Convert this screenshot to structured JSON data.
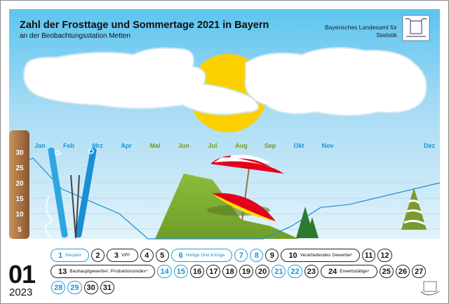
{
  "header": {
    "title": "Zahl der Frosttage und Sommertage 2021 in Bayern",
    "subtitle": "an der Beobachtungsstation Metten",
    "agency_line1": "Bayerisches Landesamt für",
    "agency_line2": "Statistik"
  },
  "chart_data": {
    "type": "area",
    "title": "Zahl der Frosttage und Sommertage 2021 in Bayern",
    "subtitle": "an der Beobachtungsstation Metten",
    "categories": [
      "Jan",
      "Feb",
      "Mrz",
      "Apr",
      "Mai",
      "Jun",
      "Jul",
      "Aug",
      "Sep",
      "Okt",
      "Nov",
      "Dez"
    ],
    "category_colors": {
      "frost": "#1a95d2",
      "summer": "#7a9a1e"
    },
    "summer_months": [
      "Mai",
      "Jun",
      "Jul",
      "Aug",
      "Sep"
    ],
    "y_ticks": [
      5,
      10,
      15,
      20,
      25,
      30
    ],
    "ylim": [
      0,
      32
    ],
    "grid": true,
    "series": [
      {
        "values": [
          28,
          18,
          14,
          10,
          0,
          0,
          0,
          0,
          0,
          6,
          12,
          13
        ],
        "color": "#1a8fd6"
      },
      {
        "values": [
          0,
          0,
          0,
          0,
          0,
          23,
          21,
          8,
          6,
          0,
          0,
          0
        ],
        "color": "#8dbb3a"
      }
    ]
  },
  "calendar": {
    "month": "01",
    "year": "2023",
    "rows": [
      [
        {
          "n": "1",
          "label": "Neujahr",
          "blue": true
        },
        {
          "n": "2"
        },
        {
          "n": "3",
          "label": "VPI¹"
        },
        {
          "n": "4"
        },
        {
          "n": "5"
        },
        {
          "n": "6",
          "label": "Heilige Drei Könige",
          "blue": true
        },
        {
          "n": "7",
          "blue": true
        },
        {
          "n": "8",
          "blue": true
        },
        {
          "n": "9"
        },
        {
          "n": "10",
          "label": "Verarbeitendes Gewerbe²"
        },
        {
          "n": "11"
        },
        {
          "n": "12"
        }
      ],
      [
        {
          "n": "13",
          "label": "Bauhauptgewerbe³, Produktionsindex⁴"
        },
        {
          "n": "14",
          "blue": true
        },
        {
          "n": "15",
          "blue": true
        },
        {
          "n": "16"
        },
        {
          "n": "17"
        },
        {
          "n": "18"
        },
        {
          "n": "19"
        },
        {
          "n": "20"
        },
        {
          "n": "21",
          "blue": true
        },
        {
          "n": "22",
          "blue": true
        },
        {
          "n": "23"
        },
        {
          "n": "24",
          "label": "Erwerbstätige⁵"
        },
        {
          "n": "25"
        },
        {
          "n": "26"
        },
        {
          "n": "27"
        }
      ],
      [
        {
          "n": "28",
          "blue": true
        },
        {
          "n": "29",
          "blue": true
        },
        {
          "n": "30"
        },
        {
          "n": "31"
        }
      ]
    ]
  }
}
